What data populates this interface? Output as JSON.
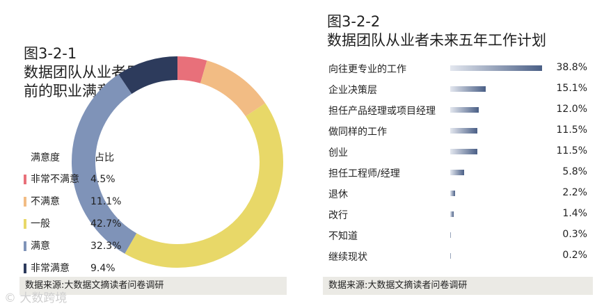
{
  "chart_data": [
    {
      "type": "pie",
      "variant": "donut",
      "title": "图3-2-1\n数据团队从业者目\n前的职业满意度",
      "legend_header": {
        "label": "满意度",
        "value": "占比"
      },
      "categories": [
        "非常不满意",
        "不满意",
        "一般",
        "满意",
        "非常满意"
      ],
      "values": [
        4.5,
        11.1,
        42.7,
        32.3,
        9.4
      ],
      "value_labels": [
        "4.5%",
        "11.1%",
        "42.7%",
        "32.3%",
        "9.4%"
      ],
      "colors": [
        "#e8707a",
        "#f2bc84",
        "#e8d868",
        "#7f93b8",
        "#2d3b5c"
      ],
      "legend_placement": "left",
      "source": "数据来源:大数据文摘读者问卷调研"
    },
    {
      "type": "bar",
      "orientation": "horizontal",
      "title": "图3-2-2\n数据团队从业者未来五年工作计划",
      "categories": [
        "向往更专业的工作",
        "企业决策层",
        "担任产品经理或项目经理",
        "做同样的工作",
        "创业",
        "担任工程师/经理",
        "退休",
        "改行",
        "不知道",
        "继续现状"
      ],
      "values": [
        38.8,
        15.1,
        12.0,
        11.5,
        11.5,
        5.8,
        2.2,
        1.4,
        0.3,
        0.2
      ],
      "value_labels": [
        "38.8%",
        "15.1%",
        "12.0%",
        "11.5%",
        "11.5%",
        "5.8%",
        "2.2%",
        "1.4%",
        "0.3%",
        "0.2%"
      ],
      "xlim": [
        0,
        38.8
      ],
      "bar_color": "#4a5f86",
      "source": "数据来源:大数据文摘读者问卷调研"
    }
  ],
  "watermark": "© 大数跨境"
}
